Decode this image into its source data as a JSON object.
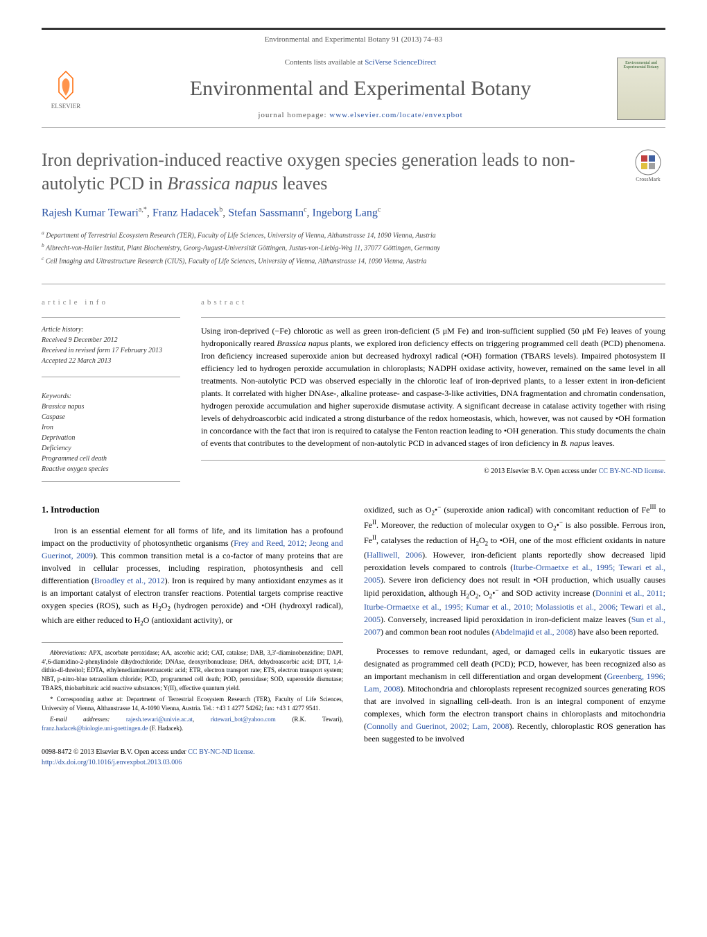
{
  "journal_header": "Environmental and Experimental Botany 91 (2013) 74–83",
  "contents_text": "Contents lists available at ",
  "contents_link": "SciVerse ScienceDirect",
  "journal_title": "Environmental and Experimental Botany",
  "homepage_label": "journal homepage: ",
  "homepage_url": "www.elsevier.com/locate/envexpbot",
  "publisher": "ELSEVIER",
  "cover_text": "Environmental and Experimental Botany",
  "crossmark_label": "CrossMark",
  "article": {
    "title_html": "Iron deprivation-induced reactive oxygen species generation leads to non-autolytic PCD in <em>Brassica napus</em> leaves",
    "authors_html": "<a>Rajesh Kumar Tewari</a><sup>a,*</sup>, <a>Franz Hadacek</a><sup>b</sup>, <a>Stefan Sassmann</a><sup>c</sup>, <a>Ingeborg Lang</a><sup>c</sup>",
    "affiliations": [
      "<sup>a</sup> Department of Terrestrial Ecosystem Research (TER), Faculty of Life Sciences, University of Vienna, Althanstrasse 14, 1090 Vienna, Austria",
      "<sup>b</sup> Albrecht-von-Haller Institut, Plant Biochemistry, Georg-August-Universität Göttingen, Justus-von-Liebig-Weg 11, 37077 Göttingen, Germany",
      "<sup>c</sup> Cell Imaging and Ultrastructure Research (CIUS), Faculty of Life Sciences, University of Vienna, Althanstrasse 14, 1090 Vienna, Austria"
    ]
  },
  "info_head": "article info",
  "abstract_head": "abstract",
  "history": {
    "label": "Article history:",
    "received": "Received 9 December 2012",
    "revised": "Received in revised form 17 February 2013",
    "accepted": "Accepted 22 March 2013"
  },
  "keywords": {
    "label": "Keywords:",
    "items": [
      "Brassica napus",
      "Caspase",
      "Iron",
      "Deprivation",
      "Deficiency",
      "Programmed cell death",
      "Reactive oxygen species"
    ]
  },
  "abstract_html": "Using iron-deprived (−Fe) chlorotic as well as green iron-deficient (5 μM Fe) and iron-sufficient supplied (50 μM Fe) leaves of young hydroponically reared <em>Brassica napus</em> plants, we explored iron deficiency effects on triggering programmed cell death (PCD) phenomena. Iron deficiency increased superoxide anion but decreased hydroxyl radical (•OH) formation (TBARS levels). Impaired photosystem II efficiency led to hydrogen peroxide accumulation in chloroplasts; NADPH oxidase activity, however, remained on the same level in all treatments. Non-autolytic PCD was observed especially in the chlorotic leaf of iron-deprived plants, to a lesser extent in iron-deficient plants. It correlated with higher DNAse-, alkaline protease- and caspase-3-like activities, DNA fragmentation and chromatin condensation, hydrogen peroxide accumulation and higher superoxide dismutase activity. A significant decrease in catalase activity together with rising levels of dehydroascorbic acid indicated a strong disturbance of the redox homeostasis, which, however, was not caused by •OH formation in concordance with the fact that iron is required to catalyse the Fenton reaction leading to •OH generation. This study documents the chain of events that contributes to the development of non-autolytic PCD in advanced stages of iron deficiency in <em>B. napus</em> leaves.",
  "copyright": "© 2013 Elsevier B.V. ",
  "license_text": "Open access under ",
  "license_link": "CC BY-NC-ND license.",
  "intro_head": "1. Introduction",
  "body_left_html": "Iron is an essential element for all forms of life, and its limitation has a profound impact on the productivity of photosynthetic organisms (<a>Frey and Reed, 2012; Jeong and Guerinot, 2009</a>). This common transition metal is a co-factor of many proteins that are involved in cellular processes, including respiration, photosynthesis and cell differentiation (<a>Broadley et al., 2012</a>). Iron is required by many antioxidant enzymes as it is an important catalyst of electron transfer reactions. Potential targets comprise reactive oxygen species (ROS), such as H<sub>2</sub>O<sub>2</sub> (hydrogen peroxide) and •OH (hydroxyl radical), which are either reduced to H<sub>2</sub>O (antioxidant activity), or",
  "body_right_p1_html": "oxidized, such as O<sub>2</sub>•<sup>−</sup> (superoxide anion radical) with concomitant reduction of Fe<sup>III</sup> to Fe<sup>II</sup>. Moreover, the reduction of molecular oxygen to O<sub>2</sub>•<sup>−</sup> is also possible. Ferrous iron, Fe<sup>II</sup>, catalyses the reduction of H<sub>2</sub>O<sub>2</sub> to •OH, one of the most efficient oxidants in nature (<a>Halliwell, 2006</a>). However, iron-deficient plants reportedly show decreased lipid peroxidation levels compared to controls (<a>Iturbe-Ormaetxe et al., 1995; Tewari et al., 2005</a>). Severe iron deficiency does not result in •OH production, which usually causes lipid peroxidation, although H<sub>2</sub>O<sub>2</sub>, O<sub>2</sub>•<sup>−</sup> and SOD activity increase (<a>Donnini et al., 2011; Iturbe-Ormaetxe et al., 1995; Kumar et al., 2010; Molassiotis et al., 2006; Tewari et al., 2005</a>). Conversely, increased lipid peroxidation in iron-deficient maize leaves (<a>Sun et al., 2007</a>) and common bean root nodules (<a>Abdelmajid et al., 2008</a>) have also been reported.",
  "body_right_p2_html": "Processes to remove redundant, aged, or damaged cells in eukaryotic tissues are designated as programmed cell death (PCD); PCD, however, has been recognized also as an important mechanism in cell differentiation and organ development (<a>Greenberg, 1996; Lam, 2008</a>). Mitochondria and chloroplasts represent recognized sources generating ROS that are involved in signalling cell-death. Iron is an integral component of enzyme complexes, which form the electron transport chains in chloroplasts and mitochondria (<a>Connolly and Guerinot, 2002; Lam, 2008</a>). Recently, chloroplastic ROS generation has been suggested to be involved",
  "footnotes": {
    "abbrev_label": "Abbreviations:",
    "abbrev_text": "APX, ascorbate peroxidase; AA, ascorbic acid; CAT, catalase; DAB, 3,3′-diaminobenzidine; DAPI, 4′,6-diamidino-2-phenylindole dihydrochloride; DNAse, deoxyribonuclease; DHA, dehydroascorbic acid; DTT, 1,4-dithio-dl-threitol; EDTA, ethylenediaminetetraacetic acid; ETR, electron transport rate; ETS, electron transport system; NBT, p-nitro-blue tetrazolium chloride; PCD, programmed cell death; POD, peroxidase; SOD, superoxide dismutase; TBARS, thiobarbituric acid reactive substances; Y(II), effective quantum yield.",
    "corresp_label": "* Corresponding author at:",
    "corresp_text": "Department of Terrestrial Ecosystem Research (TER), Faculty of Life Sciences, University of Vienna, Althanstrasse 14, A-1090 Vienna, Austria. Tel.: +43 1 4277 54262; fax: +43 1 4277 9541.",
    "email_label": "E-mail addresses:",
    "email1": "rajesh.tewari@univie.ac.at",
    "email2": "rktewari_bot@yahoo.com",
    "email_author1": "(R.K. Tewari),",
    "email3": "franz.hadacek@biologie.uni-goettingen.de",
    "email_author2": "(F. Hadacek)."
  },
  "doi": {
    "issn": "0098-8472 © 2013 Elsevier B.V. ",
    "license_text": "Open access under ",
    "license_link": "CC BY-NC-ND license.",
    "url": "http://dx.doi.org/10.1016/j.envexpbot.2013.03.006"
  },
  "colors": {
    "link": "#2952a3",
    "text": "#000000",
    "gray_text": "#555555",
    "border": "#999999",
    "elsevier_orange": "#ff6600"
  }
}
